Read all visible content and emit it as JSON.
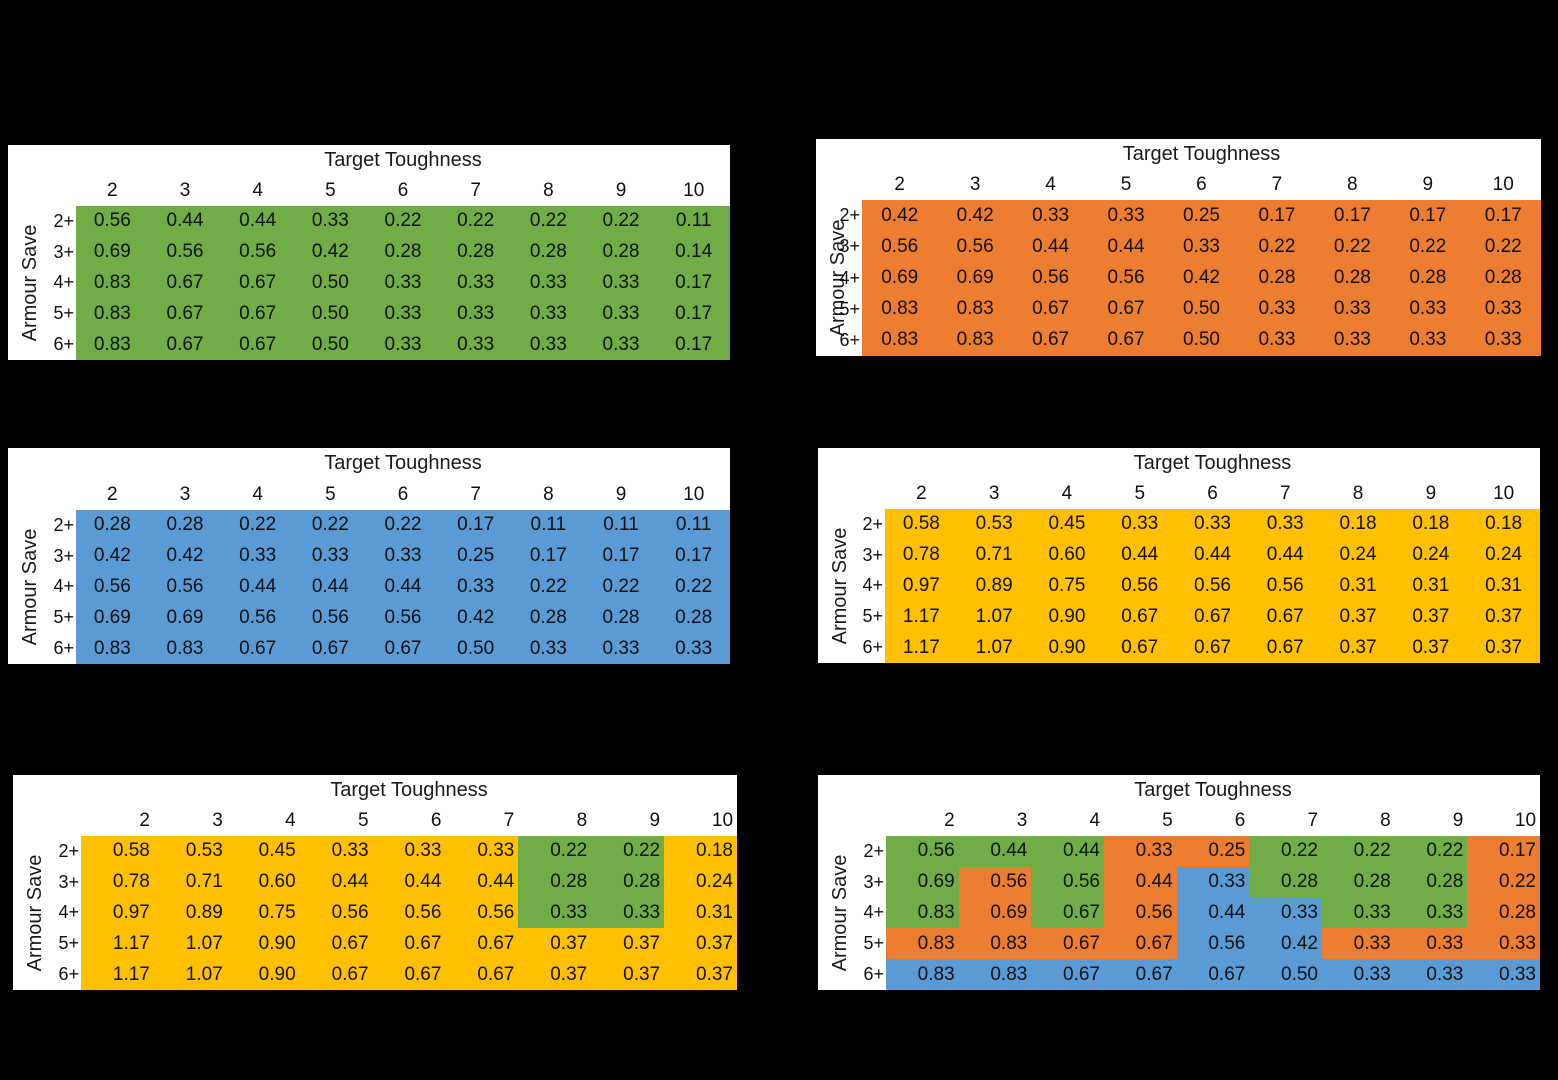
{
  "colors": {
    "green": "#70AD47",
    "orange": "#ED7D31",
    "blue": "#5B9BD5",
    "yellow": "#FFC000"
  },
  "chart_data": [
    {
      "type": "table",
      "id": "table-1",
      "title": "Target Toughness",
      "xlabel": "Target Toughness",
      "ylabel": "Armour Save",
      "columns": [
        "2",
        "3",
        "4",
        "5",
        "6",
        "7",
        "8",
        "9",
        "10"
      ],
      "rows": [
        "2+",
        "3+",
        "4+",
        "5+",
        "6+"
      ],
      "fill": "green",
      "values": [
        [
          "0.56",
          "0.44",
          "0.44",
          "0.33",
          "0.22",
          "0.22",
          "0.22",
          "0.22",
          "0.11"
        ],
        [
          "0.69",
          "0.56",
          "0.56",
          "0.42",
          "0.28",
          "0.28",
          "0.28",
          "0.28",
          "0.14"
        ],
        [
          "0.83",
          "0.67",
          "0.67",
          "0.50",
          "0.33",
          "0.33",
          "0.33",
          "0.33",
          "0.17"
        ],
        [
          "0.83",
          "0.67",
          "0.67",
          "0.50",
          "0.33",
          "0.33",
          "0.33",
          "0.33",
          "0.17"
        ],
        [
          "0.83",
          "0.67",
          "0.67",
          "0.50",
          "0.33",
          "0.33",
          "0.33",
          "0.33",
          "0.17"
        ]
      ]
    },
    {
      "type": "table",
      "id": "table-2",
      "title": "Target Toughness",
      "xlabel": "Target Toughness",
      "ylabel": "Armour Save",
      "columns": [
        "2",
        "3",
        "4",
        "5",
        "6",
        "7",
        "8",
        "9",
        "10"
      ],
      "rows": [
        "2+",
        "3+",
        "4+",
        "5+",
        "6+"
      ],
      "fill": "orange",
      "values": [
        [
          "0.42",
          "0.42",
          "0.33",
          "0.33",
          "0.25",
          "0.17",
          "0.17",
          "0.17",
          "0.17"
        ],
        [
          "0.56",
          "0.56",
          "0.44",
          "0.44",
          "0.33",
          "0.22",
          "0.22",
          "0.22",
          "0.22"
        ],
        [
          "0.69",
          "0.69",
          "0.56",
          "0.56",
          "0.42",
          "0.28",
          "0.28",
          "0.28",
          "0.28"
        ],
        [
          "0.83",
          "0.83",
          "0.67",
          "0.67",
          "0.50",
          "0.33",
          "0.33",
          "0.33",
          "0.33"
        ],
        [
          "0.83",
          "0.83",
          "0.67",
          "0.67",
          "0.50",
          "0.33",
          "0.33",
          "0.33",
          "0.33"
        ]
      ]
    },
    {
      "type": "table",
      "id": "table-3",
      "title": "Target Toughness",
      "xlabel": "Target Toughness",
      "ylabel": "Armour Save",
      "columns": [
        "2",
        "3",
        "4",
        "5",
        "6",
        "7",
        "8",
        "9",
        "10"
      ],
      "rows": [
        "2+",
        "3+",
        "4+",
        "5+",
        "6+"
      ],
      "fill": "blue",
      "values": [
        [
          "0.28",
          "0.28",
          "0.22",
          "0.22",
          "0.22",
          "0.17",
          "0.11",
          "0.11",
          "0.11"
        ],
        [
          "0.42",
          "0.42",
          "0.33",
          "0.33",
          "0.33",
          "0.25",
          "0.17",
          "0.17",
          "0.17"
        ],
        [
          "0.56",
          "0.56",
          "0.44",
          "0.44",
          "0.44",
          "0.33",
          "0.22",
          "0.22",
          "0.22"
        ],
        [
          "0.69",
          "0.69",
          "0.56",
          "0.56",
          "0.56",
          "0.42",
          "0.28",
          "0.28",
          "0.28"
        ],
        [
          "0.83",
          "0.83",
          "0.67",
          "0.67",
          "0.67",
          "0.50",
          "0.33",
          "0.33",
          "0.33"
        ]
      ]
    },
    {
      "type": "table",
      "id": "table-4",
      "title": "Target Toughness",
      "xlabel": "Target Toughness",
      "ylabel": "Armour Save",
      "columns": [
        "2",
        "3",
        "4",
        "5",
        "6",
        "7",
        "8",
        "9",
        "10"
      ],
      "rows": [
        "2+",
        "3+",
        "4+",
        "5+",
        "6+"
      ],
      "fill": "yellow",
      "values": [
        [
          "0.58",
          "0.53",
          "0.45",
          "0.33",
          "0.33",
          "0.33",
          "0.18",
          "0.18",
          "0.18"
        ],
        [
          "0.78",
          "0.71",
          "0.60",
          "0.44",
          "0.44",
          "0.44",
          "0.24",
          "0.24",
          "0.24"
        ],
        [
          "0.97",
          "0.89",
          "0.75",
          "0.56",
          "0.56",
          "0.56",
          "0.31",
          "0.31",
          "0.31"
        ],
        [
          "1.17",
          "1.07",
          "0.90",
          "0.67",
          "0.67",
          "0.67",
          "0.37",
          "0.37",
          "0.37"
        ],
        [
          "1.17",
          "1.07",
          "0.90",
          "0.67",
          "0.67",
          "0.67",
          "0.37",
          "0.37",
          "0.37"
        ]
      ]
    },
    {
      "type": "table",
      "id": "table-5",
      "title": "Target Toughness",
      "xlabel": "Target Toughness",
      "ylabel": "Armour Save",
      "columns": [
        "2",
        "3",
        "4",
        "5",
        "6",
        "7",
        "8",
        "9",
        "10"
      ],
      "rows": [
        "2+",
        "3+",
        "4+",
        "5+",
        "6+"
      ],
      "values": [
        [
          "0.58",
          "0.53",
          "0.45",
          "0.33",
          "0.33",
          "0.33",
          "0.22",
          "0.22",
          "0.18"
        ],
        [
          "0.78",
          "0.71",
          "0.60",
          "0.44",
          "0.44",
          "0.44",
          "0.28",
          "0.28",
          "0.24"
        ],
        [
          "0.97",
          "0.89",
          "0.75",
          "0.56",
          "0.56",
          "0.56",
          "0.33",
          "0.33",
          "0.31"
        ],
        [
          "1.17",
          "1.07",
          "0.90",
          "0.67",
          "0.67",
          "0.67",
          "0.37",
          "0.37",
          "0.37"
        ],
        [
          "1.17",
          "1.07",
          "0.90",
          "0.67",
          "0.67",
          "0.67",
          "0.37",
          "0.37",
          "0.37"
        ]
      ],
      "fills": [
        [
          "yellow",
          "yellow",
          "yellow",
          "yellow",
          "yellow",
          "yellow",
          "green",
          "green",
          "yellow"
        ],
        [
          "yellow",
          "yellow",
          "yellow",
          "yellow",
          "yellow",
          "yellow",
          "green",
          "green",
          "yellow"
        ],
        [
          "yellow",
          "yellow",
          "yellow",
          "yellow",
          "yellow",
          "yellow",
          "green",
          "green",
          "yellow"
        ],
        [
          "yellow",
          "yellow",
          "yellow",
          "yellow",
          "yellow",
          "yellow",
          "yellow",
          "yellow",
          "yellow"
        ],
        [
          "yellow",
          "yellow",
          "yellow",
          "yellow",
          "yellow",
          "yellow",
          "yellow",
          "yellow",
          "yellow"
        ]
      ]
    },
    {
      "type": "table",
      "id": "table-6",
      "title": "Target Toughness",
      "xlabel": "Target Toughness",
      "ylabel": "Armour Save",
      "columns": [
        "2",
        "3",
        "4",
        "5",
        "6",
        "7",
        "8",
        "9",
        "10"
      ],
      "rows": [
        "2+",
        "3+",
        "4+",
        "5+",
        "6+"
      ],
      "values": [
        [
          "0.56",
          "0.44",
          "0.44",
          "0.33",
          "0.25",
          "0.22",
          "0.22",
          "0.22",
          "0.17"
        ],
        [
          "0.69",
          "0.56",
          "0.56",
          "0.44",
          "0.33",
          "0.28",
          "0.28",
          "0.28",
          "0.22"
        ],
        [
          "0.83",
          "0.69",
          "0.67",
          "0.56",
          "0.44",
          "0.33",
          "0.33",
          "0.33",
          "0.28"
        ],
        [
          "0.83",
          "0.83",
          "0.67",
          "0.67",
          "0.56",
          "0.42",
          "0.33",
          "0.33",
          "0.33"
        ],
        [
          "0.83",
          "0.83",
          "0.67",
          "0.67",
          "0.67",
          "0.50",
          "0.33",
          "0.33",
          "0.33"
        ]
      ],
      "fills": [
        [
          "green",
          "green",
          "green",
          "orange",
          "orange",
          "green",
          "green",
          "green",
          "orange"
        ],
        [
          "green",
          "orange",
          "green",
          "orange",
          "blue",
          "green",
          "green",
          "green",
          "orange"
        ],
        [
          "green",
          "orange",
          "green",
          "orange",
          "blue",
          "blue",
          "green",
          "green",
          "orange"
        ],
        [
          "orange",
          "orange",
          "orange",
          "orange",
          "blue",
          "blue",
          "orange",
          "orange",
          "orange"
        ],
        [
          "blue",
          "blue",
          "blue",
          "blue",
          "blue",
          "blue",
          "blue",
          "blue",
          "blue"
        ]
      ]
    }
  ]
}
